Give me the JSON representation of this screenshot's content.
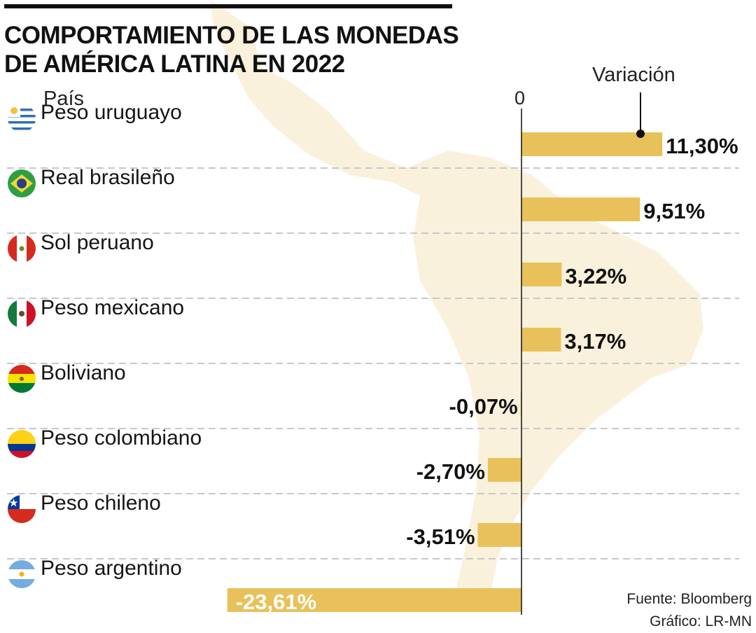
{
  "title_lines": [
    "COMPORTAMIENTO DE LAS MONEDAS",
    "DE AMÉRICA LATINA EN 2022"
  ],
  "country_header": "País",
  "zero_label": "0",
  "variation_label": "Variación",
  "source": "Fuente: Bloomberg",
  "credit": "Gráfico: LR-MN",
  "colors": {
    "bar": "#e8c15a",
    "map": "#faf1dc",
    "text": "#111111",
    "gridline": "#c8c8c8"
  },
  "chart_data": {
    "type": "bar",
    "orientation": "horizontal",
    "xlabel": "Variación",
    "ylabel": "País",
    "categories": [
      "Peso uruguayo",
      "Real brasileño",
      "Sol peruano",
      "Peso mexicano",
      "Boliviano",
      "Peso colombiano",
      "Peso chileno",
      "Peso argentino"
    ],
    "values": [
      11.3,
      9.51,
      3.22,
      3.17,
      -0.07,
      -2.7,
      -3.51,
      -23.61
    ],
    "value_labels": [
      "11,30%",
      "9,51%",
      "3,22%",
      "3,17%",
      "-0,07%",
      "-2,70%",
      "-3,51%",
      "-23,61%"
    ],
    "flags": [
      "uruguay-flag-icon",
      "brazil-flag-icon",
      "peru-flag-icon",
      "mexico-flag-icon",
      "bolivia-flag-icon",
      "colombia-flag-icon",
      "chile-flag-icon",
      "argentina-flag-icon"
    ],
    "baseline": 0,
    "grid": "dashed row separators"
  }
}
